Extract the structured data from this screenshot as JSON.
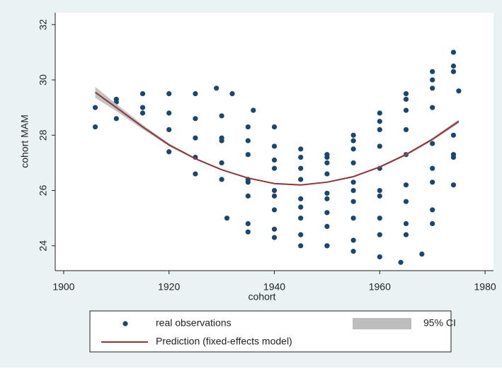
{
  "chart_data": {
    "type": "scatter",
    "xlabel": "cohort",
    "ylabel": "cohort MAM",
    "xlim": [
      1898.4,
      1981.6
    ],
    "ylim": [
      23.1,
      32.43
    ],
    "xticks": [
      1900,
      1920,
      1940,
      1960,
      1980
    ],
    "yticks": [
      24,
      26,
      28,
      30,
      32
    ],
    "series": [
      {
        "name": "real observations",
        "color": "#1a476f",
        "x": [
          1906,
          1910,
          1915,
          1920,
          1925,
          1929,
          1932,
          1936,
          1940,
          1945,
          1950,
          1955,
          1960,
          1965,
          1970,
          1974,
          1906,
          1910,
          1915,
          1920,
          1925,
          1930,
          1935,
          1940,
          1945,
          1950,
          1955,
          1960,
          1965,
          1970,
          1974,
          1910,
          1915,
          1920,
          1925,
          1930,
          1935,
          1940,
          1945,
          1950,
          1955,
          1960,
          1965,
          1970,
          1975,
          1920,
          1925,
          1930,
          1935,
          1940,
          1945,
          1950,
          1955,
          1960,
          1965,
          1970,
          1974,
          1925,
          1930,
          1935,
          1940,
          1945,
          1950,
          1955,
          1960,
          1965,
          1970,
          1974,
          1931,
          1935,
          1940,
          1945,
          1950,
          1955,
          1960,
          1965,
          1970,
          1974,
          1935,
          1940,
          1945,
          1950,
          1955,
          1960,
          1965,
          1970,
          1950,
          1955,
          1960,
          1964,
          1968,
          1935,
          1940,
          1945,
          1950,
          1955,
          1960,
          1965,
          1970,
          1974,
          1930,
          1935,
          1940,
          1945,
          1950,
          1955,
          1960,
          1965,
          1970,
          1974
        ],
        "values": [
          29.0,
          29.3,
          29.5,
          29.5,
          29.5,
          29.7,
          29.5,
          28.9,
          28.3,
          27.5,
          27.3,
          27.8,
          28.5,
          29.3,
          30.3,
          31.0,
          28.3,
          28.6,
          29.0,
          28.8,
          28.6,
          28.7,
          28.3,
          27.6,
          27.2,
          27.0,
          27.5,
          28.2,
          28.9,
          29.7,
          30.3,
          29.2,
          28.8,
          28.2,
          27.9,
          27.8,
          27.3,
          26.8,
          26.4,
          26.6,
          27.0,
          27.6,
          28.2,
          29.0,
          29.6,
          27.4,
          27.2,
          27.0,
          26.4,
          26.0,
          25.7,
          25.9,
          26.3,
          26.8,
          27.3,
          27.7,
          28.0,
          26.6,
          26.4,
          25.8,
          25.3,
          25.0,
          25.2,
          25.6,
          25.8,
          25.6,
          26.3,
          27.2,
          25.0,
          24.8,
          24.6,
          24.4,
          24.7,
          25.0,
          25.0,
          24.8,
          25.3,
          26.2,
          24.5,
          24.3,
          24.0,
          24.0,
          24.2,
          24.4,
          24.4,
          24.8,
          24.0,
          23.8,
          23.6,
          23.4,
          23.7,
          26.3,
          25.8,
          25.4,
          25.7,
          26.0,
          26.0,
          26.2,
          26.8,
          27.3,
          27.9,
          27.8,
          27.1,
          26.8,
          27.2,
          28.0,
          28.8,
          29.5,
          30.0,
          30.5
        ]
      },
      {
        "name": "95% CI",
        "type": "band",
        "color": "#bdbdbd",
        "x": [
          1906,
          1910,
          1915,
          1920,
          1925,
          1930,
          1935,
          1940,
          1945,
          1950,
          1955,
          1960,
          1965,
          1970,
          1975
        ],
        "lower": [
          29.35,
          28.87,
          28.22,
          27.6,
          27.12,
          26.73,
          26.43,
          26.23,
          26.18,
          26.28,
          26.48,
          26.82,
          27.26,
          27.8,
          28.43
        ],
        "upper": [
          29.75,
          29.13,
          28.38,
          27.7,
          27.18,
          26.77,
          26.47,
          26.27,
          26.22,
          26.32,
          26.52,
          26.88,
          27.34,
          27.9,
          28.57
        ]
      },
      {
        "name": "Prediction (fixed-effects model)",
        "type": "line",
        "color": "#90353b",
        "x": [
          1906,
          1910,
          1915,
          1920,
          1925,
          1930,
          1935,
          1940,
          1945,
          1950,
          1955,
          1960,
          1965,
          1970,
          1975
        ],
        "values": [
          29.55,
          29.0,
          28.3,
          27.65,
          27.15,
          26.75,
          26.45,
          26.25,
          26.2,
          26.3,
          26.5,
          26.85,
          27.3,
          27.85,
          28.5
        ]
      }
    ]
  }
}
